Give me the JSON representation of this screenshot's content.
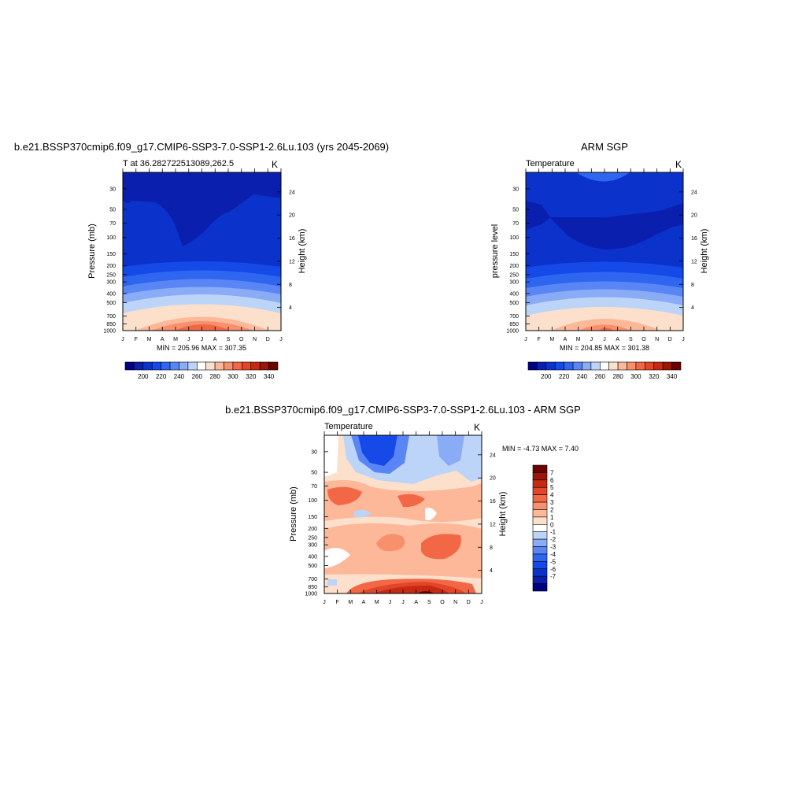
{
  "panels": {
    "model": {
      "title": "b.e21.BSSP370cmip6.f09_g17.CMIP6-SSP3-7.0-SSP1-2.6Lu.103 (yrs 2045-2069)",
      "left_label": "T at 36.282722513089,262.5",
      "right_label": "K",
      "ylabel": "Pressure (mb)",
      "ylabel_right": "Height (km)",
      "stats": "MIN = 205.96 MAX = 307.35"
    },
    "obs": {
      "title": "ARM SGP",
      "left_label": "Temperature",
      "right_label": "K",
      "ylabel": "pressure level",
      "ylabel_right": "Height (km)",
      "stats": "MIN = 204.85 MAX = 301.38"
    },
    "diff": {
      "title": "b.e21.BSSP370cmip6.f09_g17.CMIP6-SSP3-7.0-SSP1-2.6Lu.103 - ARM SGP",
      "left_label": "Temperature",
      "right_label": "K",
      "ylabel": "Pressure (mb)",
      "ylabel_right": "Height (km)",
      "stats": "MIN =  -4.73 MAX =   7.40"
    }
  },
  "chart_data": [
    {
      "type": "heatmap",
      "title": "b.e21.BSSP370cmip6.f09_g17.CMIP6-SSP3-7.0-SSP1-2.6Lu.103 (yrs 2045-2069)",
      "months": [
        "J",
        "F",
        "M",
        "A",
        "M",
        "J",
        "J",
        "A",
        "S",
        "O",
        "N",
        "D",
        "J"
      ],
      "pressure_ticks": [
        30,
        50,
        70,
        100,
        150,
        200,
        250,
        300,
        400,
        500,
        700,
        850,
        1000
      ],
      "height_ticks": [
        4,
        8,
        12,
        16,
        20,
        24
      ],
      "ylim": [
        1000,
        20
      ],
      "yscale": "log",
      "units": "K",
      "min": 205.96,
      "max": 307.35,
      "levels": [
        200,
        210,
        220,
        230,
        240,
        250,
        260,
        270,
        280,
        290,
        300,
        310,
        320,
        330,
        340
      ],
      "level_labels": [
        "200",
        "220",
        "240",
        "260",
        "280",
        "300",
        "320",
        "340"
      ]
    },
    {
      "type": "heatmap",
      "title": "ARM SGP",
      "months": [
        "J",
        "F",
        "M",
        "A",
        "M",
        "J",
        "J",
        "A",
        "S",
        "O",
        "N",
        "D",
        "J"
      ],
      "pressure_ticks": [
        30,
        50,
        70,
        100,
        150,
        200,
        250,
        300,
        400,
        500,
        700,
        850,
        1000
      ],
      "height_ticks": [
        4,
        8,
        12,
        16,
        20,
        24
      ],
      "ylim": [
        1000,
        20
      ],
      "yscale": "log",
      "units": "K",
      "min": 204.85,
      "max": 301.38,
      "levels": [
        200,
        210,
        220,
        230,
        240,
        250,
        260,
        270,
        280,
        290,
        300,
        310,
        320,
        330,
        340
      ],
      "level_labels": [
        "200",
        "220",
        "240",
        "260",
        "280",
        "300",
        "320",
        "340"
      ]
    },
    {
      "type": "heatmap",
      "title": "b.e21.BSSP370cmip6.f09_g17.CMIP6-SSP3-7.0-SSP1-2.6Lu.103 - ARM SGP",
      "months": [
        "J",
        "F",
        "M",
        "A",
        "M",
        "J",
        "J",
        "A",
        "S",
        "O",
        "N",
        "D",
        "J"
      ],
      "pressure_ticks": [
        30,
        50,
        70,
        100,
        150,
        200,
        250,
        300,
        400,
        500,
        700,
        850,
        1000
      ],
      "height_ticks": [
        4,
        8,
        12,
        16,
        20,
        24
      ],
      "ylim": [
        1000,
        20
      ],
      "yscale": "log",
      "units": "K",
      "min": -4.73,
      "max": 7.4,
      "levels": [
        -7,
        -6,
        -5,
        -4,
        -3,
        -2,
        -1,
        0,
        1,
        2,
        3,
        4,
        5,
        6,
        7
      ],
      "level_labels": [
        "7",
        "6",
        "5",
        "4",
        "3",
        "2",
        "1",
        "0",
        "-1",
        "-2",
        "-3",
        "-4",
        "-5",
        "-6",
        "-7"
      ]
    }
  ],
  "colors": {
    "palette": [
      "#000080",
      "#0a1fad",
      "#0b33cc",
      "#1549e8",
      "#2f66f0",
      "#5a86f5",
      "#8aabf5",
      "#bcd4f7",
      "#ffffff",
      "#fde0cc",
      "#fcb898",
      "#f8906c",
      "#f26846",
      "#e24527",
      "#c62a12",
      "#9c1505",
      "#6b0000"
    ],
    "axis": "#000000"
  }
}
